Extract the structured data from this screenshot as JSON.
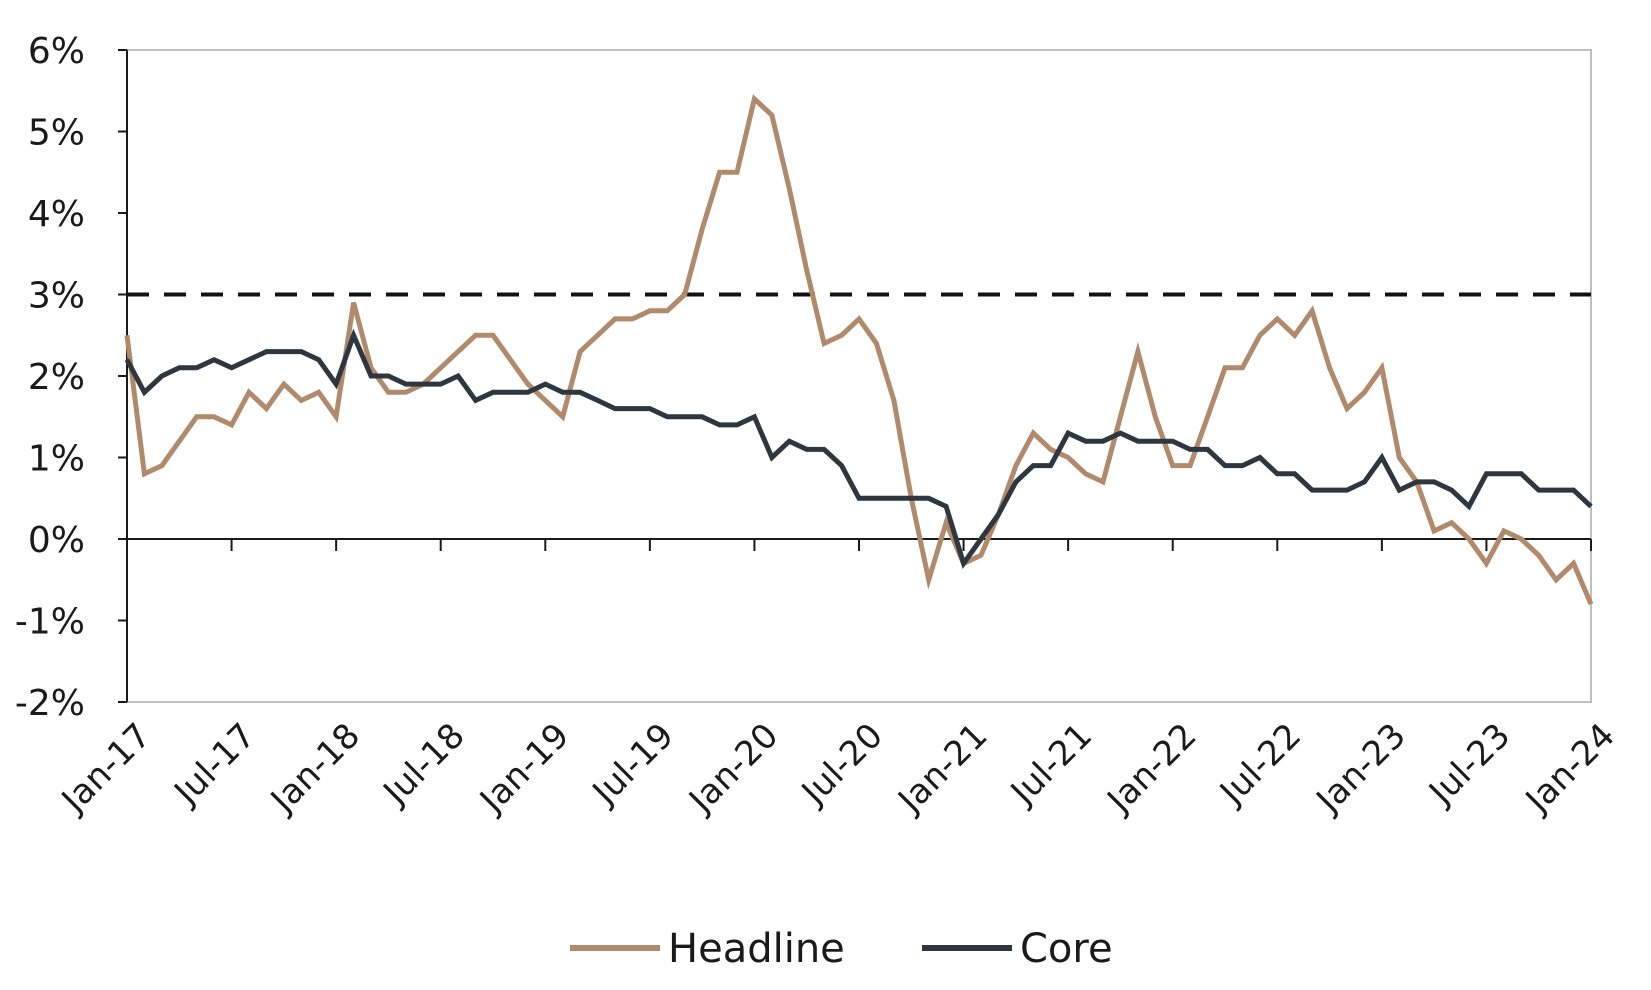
{
  "chart_data": {
    "type": "line",
    "title": "",
    "xlabel": "",
    "ylabel": "",
    "ylim": [
      -2,
      6
    ],
    "y_ticks": [
      "6%",
      "5%",
      "4%",
      "3%",
      "2%",
      "1%",
      "0%",
      "-1%",
      "-2%"
    ],
    "y_tick_values": [
      6,
      5,
      4,
      3,
      2,
      1,
      0,
      -1,
      -2
    ],
    "x_tick_labels": [
      "Jan-17",
      "Jul-17",
      "Jan-18",
      "Jul-18",
      "Jan-19",
      "Jul-19",
      "Jan-20",
      "Jul-20",
      "Jan-21",
      "Jul-21",
      "Jan-22",
      "Jul-22",
      "Jan-23",
      "Jul-23",
      "Jan-24"
    ],
    "x_start": "Jan-17",
    "x_end": "Jan-24",
    "target_line": 3,
    "zero_line": 0,
    "legend_position": "bottom",
    "grid": false,
    "series": [
      {
        "name": "Headline",
        "color": "#b08a6a",
        "values": [
          2.5,
          0.8,
          0.9,
          1.2,
          1.5,
          1.5,
          1.4,
          1.8,
          1.6,
          1.9,
          1.7,
          1.8,
          1.5,
          2.9,
          2.1,
          1.8,
          1.8,
          1.9,
          2.1,
          2.3,
          2.5,
          2.5,
          2.2,
          1.9,
          1.7,
          1.5,
          2.3,
          2.5,
          2.7,
          2.7,
          2.8,
          2.8,
          3.0,
          3.8,
          4.5,
          4.5,
          5.4,
          5.2,
          4.3,
          3.3,
          2.4,
          2.5,
          2.7,
          2.4,
          1.7,
          0.5,
          -0.5,
          0.2,
          -0.3,
          -0.2,
          0.3,
          0.9,
          1.3,
          1.1,
          1.0,
          0.8,
          0.7,
          1.5,
          2.3,
          1.5,
          0.9,
          0.9,
          1.5,
          2.1,
          2.1,
          2.5,
          2.7,
          2.5,
          2.8,
          2.1,
          1.6,
          1.8,
          2.1,
          1.0,
          0.7,
          0.1,
          0.2,
          0.0,
          -0.3,
          0.1,
          0.0,
          -0.2,
          -0.5,
          -0.3,
          -0.8
        ]
      },
      {
        "name": "Core",
        "color": "#2e3740",
        "values": [
          2.2,
          1.8,
          2.0,
          2.1,
          2.1,
          2.2,
          2.1,
          2.2,
          2.3,
          2.3,
          2.3,
          2.2,
          1.9,
          2.5,
          2.0,
          2.0,
          1.9,
          1.9,
          1.9,
          2.0,
          1.7,
          1.8,
          1.8,
          1.8,
          1.9,
          1.8,
          1.8,
          1.7,
          1.6,
          1.6,
          1.6,
          1.5,
          1.5,
          1.5,
          1.4,
          1.4,
          1.5,
          1.0,
          1.2,
          1.1,
          1.1,
          0.9,
          0.5,
          0.5,
          0.5,
          0.5,
          0.5,
          0.4,
          -0.3,
          0.0,
          0.3,
          0.7,
          0.9,
          0.9,
          1.3,
          1.2,
          1.2,
          1.3,
          1.2,
          1.2,
          1.2,
          1.1,
          1.1,
          0.9,
          0.9,
          1.0,
          0.8,
          0.8,
          0.6,
          0.6,
          0.6,
          0.7,
          1.0,
          0.6,
          0.7,
          0.7,
          0.6,
          0.4,
          0.8,
          0.8,
          0.8,
          0.6,
          0.6,
          0.6,
          0.4
        ]
      }
    ]
  },
  "legend": {
    "headline_label": "Headline",
    "core_label": "Core"
  }
}
